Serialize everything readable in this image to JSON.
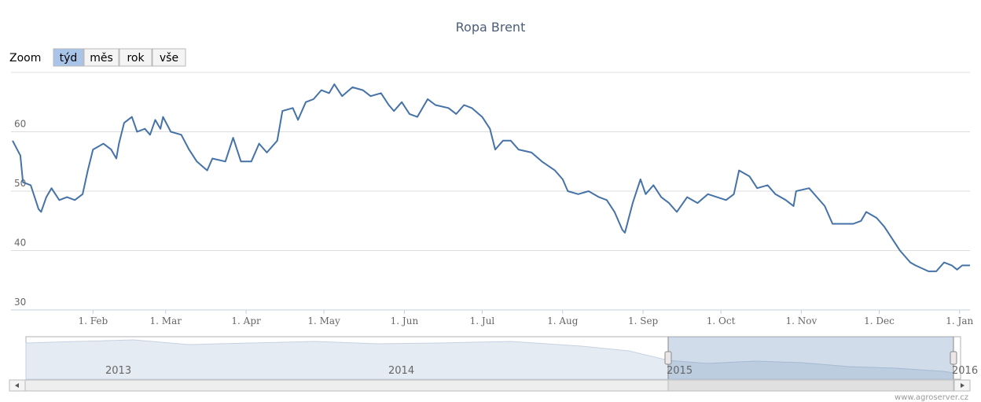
{
  "chart_data": {
    "type": "line",
    "title": "Ropa Brent",
    "color": "#4572a7",
    "x": [
      "2015-01-01",
      "2015-01-04",
      "2015-01-05",
      "2015-01-08",
      "2015-01-11",
      "2015-01-12",
      "2015-01-14",
      "2015-01-16",
      "2015-01-19",
      "2015-01-22",
      "2015-01-25",
      "2015-01-28",
      "2015-01-30",
      "2015-02-01",
      "2015-02-05",
      "2015-02-08",
      "2015-02-10",
      "2015-02-11",
      "2015-02-13",
      "2015-02-16",
      "2015-02-18",
      "2015-02-21",
      "2015-02-23",
      "2015-02-25",
      "2015-02-27",
      "2015-02-28",
      "2015-03-03",
      "2015-03-07",
      "2015-03-10",
      "2015-03-13",
      "2015-03-17",
      "2015-03-19",
      "2015-03-24",
      "2015-03-27",
      "2015-03-30",
      "2015-04-03",
      "2015-04-06",
      "2015-04-09",
      "2015-04-13",
      "2015-04-15",
      "2015-04-19",
      "2015-04-21",
      "2015-04-24",
      "2015-04-27",
      "2015-04-30",
      "2015-05-03",
      "2015-05-05",
      "2015-05-08",
      "2015-05-12",
      "2015-05-16",
      "2015-05-19",
      "2015-05-23",
      "2015-05-26",
      "2015-05-28",
      "2015-05-31",
      "2015-06-03",
      "2015-06-06",
      "2015-06-10",
      "2015-06-13",
      "2015-06-18",
      "2015-06-21",
      "2015-06-24",
      "2015-06-27",
      "2015-07-01",
      "2015-07-04",
      "2015-07-06",
      "2015-07-09",
      "2015-07-12",
      "2015-07-15",
      "2015-07-20",
      "2015-07-24",
      "2015-07-29",
      "2015-08-01",
      "2015-08-03",
      "2015-08-07",
      "2015-08-11",
      "2015-08-15",
      "2015-08-18",
      "2015-08-21",
      "2015-08-24",
      "2015-08-25",
      "2015-08-28",
      "2015-08-31",
      "2015-09-02",
      "2015-09-05",
      "2015-09-08",
      "2015-09-11",
      "2015-09-14",
      "2015-09-18",
      "2015-09-22",
      "2015-09-26",
      "2015-10-03",
      "2015-10-06",
      "2015-10-08",
      "2015-10-12",
      "2015-10-15",
      "2015-10-19",
      "2015-10-22",
      "2015-10-26",
      "2015-10-29",
      "2015-10-30",
      "2015-11-04",
      "2015-11-07",
      "2015-11-10",
      "2015-11-13",
      "2015-11-16",
      "2015-11-21",
      "2015-11-24",
      "2015-11-26",
      "2015-11-30",
      "2015-12-03",
      "2015-12-06",
      "2015-12-09",
      "2015-12-13",
      "2015-12-15",
      "2015-12-20",
      "2015-12-23",
      "2015-12-26",
      "2015-12-29",
      "2015-12-31",
      "2016-01-02",
      "2016-01-05"
    ],
    "values": [
      58.5,
      56,
      51.5,
      51,
      47,
      46.5,
      49,
      50.5,
      48.5,
      49,
      48.5,
      49.5,
      53.5,
      57,
      58,
      57,
      55.5,
      58,
      61.5,
      62.5,
      60,
      60.5,
      59.5,
      62,
      60.5,
      62.5,
      60,
      59.5,
      57,
      55,
      53.5,
      55.5,
      55,
      59,
      55,
      55,
      58,
      56.5,
      58.5,
      63.5,
      64,
      62,
      65,
      65.5,
      67,
      66.5,
      68,
      66,
      67.5,
      67,
      66,
      66.5,
      64.5,
      63.5,
      65,
      63,
      62.5,
      65.5,
      64.5,
      64,
      63,
      64.5,
      64,
      62.5,
      60.5,
      57,
      58.5,
      58.5,
      57,
      56.5,
      55,
      53.5,
      52,
      50,
      49.5,
      50,
      49,
      48.5,
      46.5,
      43.5,
      43,
      48,
      52,
      49.5,
      51,
      49,
      48,
      46.5,
      49,
      48,
      49.5,
      48.5,
      49.5,
      53.5,
      52.5,
      50.5,
      51,
      49.5,
      48.5,
      47.5,
      50,
      50.5,
      49,
      47.5,
      44.5,
      44.5,
      44.5,
      45,
      46.5,
      45.5,
      44,
      42,
      40,
      38,
      37.5,
      36.5,
      36.5,
      38,
      37.5,
      36.8,
      37.5,
      37.5
    ],
    "xlim": [
      "2015-01-01",
      "2016-01-05"
    ],
    "xticks": [
      {
        "value": "2015-02-01",
        "label": "1. Feb"
      },
      {
        "value": "2015-03-01",
        "label": "1. Mar"
      },
      {
        "value": "2015-04-01",
        "label": "1. Apr"
      },
      {
        "value": "2015-05-01",
        "label": "1. May"
      },
      {
        "value": "2015-06-01",
        "label": "1. Jun"
      },
      {
        "value": "2015-07-01",
        "label": "1. Jul"
      },
      {
        "value": "2015-08-01",
        "label": "1. Aug"
      },
      {
        "value": "2015-09-01",
        "label": "1. Sep"
      },
      {
        "value": "2015-10-01",
        "label": "1. Oct"
      },
      {
        "value": "2015-11-01",
        "label": "1. Nov"
      },
      {
        "value": "2015-12-01",
        "label": "1. Dec"
      },
      {
        "value": "2016-01-01",
        "label": "1. Jan"
      }
    ],
    "ylim": [
      30,
      70
    ],
    "yticks": [
      30,
      40,
      50,
      60
    ],
    "grid": true
  },
  "zoom": {
    "label": "Zoom",
    "buttons": [
      "týd",
      "měs",
      "rok",
      "vše"
    ],
    "selected": 0
  },
  "navigator": {
    "labels": [
      "2013",
      "2014",
      "2015",
      "2016"
    ]
  },
  "credits": "www.agroserver.cz"
}
